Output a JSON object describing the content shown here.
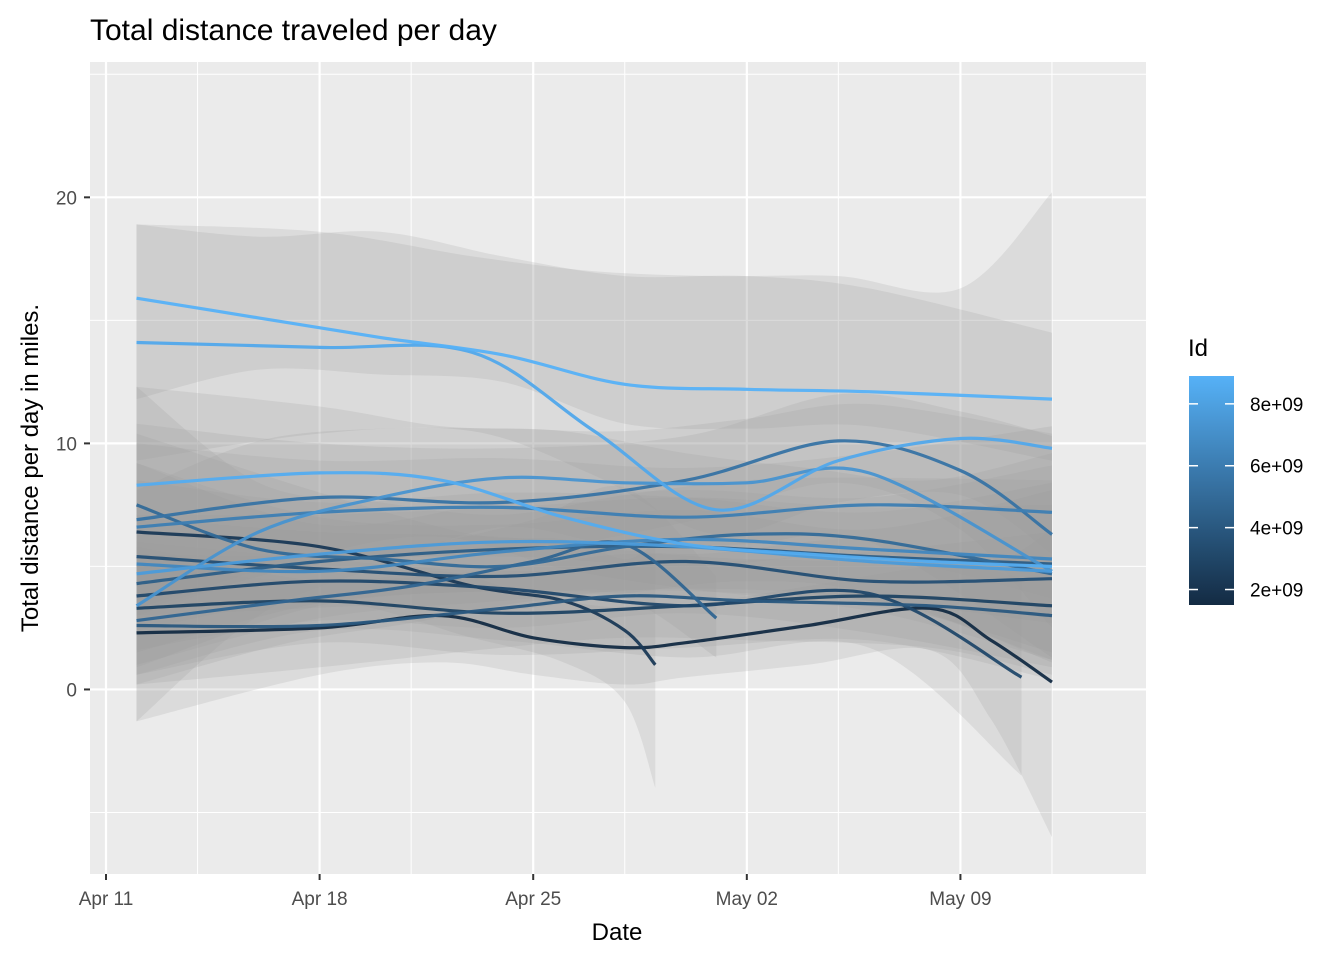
{
  "chart_data": {
    "type": "line",
    "title": "Total distance traveled per day",
    "xlabel": "Date",
    "ylabel": "Total distance per day in miles.",
    "x_ticks": [
      "Apr 11",
      "Apr 18",
      "Apr 25",
      "May 02",
      "May 09"
    ],
    "x_tick_dates": [
      "2016-04-11",
      "2016-04-18",
      "2016-04-25",
      "2016-05-02",
      "2016-05-09"
    ],
    "xlim": [
      "2016-04-11",
      "2016-05-14"
    ],
    "y_ticks": [
      0,
      10,
      20
    ],
    "ylim": [
      -7.5,
      25.5
    ],
    "grid": true,
    "legend": {
      "title": "Id",
      "position": "right",
      "type": "colorbar",
      "labels": [
        "8e+09",
        "6e+09",
        "4e+09",
        "2e+09"
      ],
      "label_values": [
        8000000000,
        6000000000,
        4000000000,
        2000000000
      ],
      "range": [
        1500000000,
        8900000000
      ],
      "color_low": "#132B43",
      "color_high": "#56B1F7"
    },
    "band_color": "#999999",
    "series": [
      {
        "id": 8900000000,
        "x": [
          "2016-04-12",
          "2016-04-16",
          "2016-04-20",
          "2016-04-24",
          "2016-04-28",
          "2016-05-02",
          "2016-05-06",
          "2016-05-12"
        ],
        "y": [
          15.9,
          15.1,
          14.3,
          13.6,
          12.4,
          12.2,
          12.1,
          11.8
        ],
        "band": [
          [
            11.8,
            18.9
          ],
          [
            13.0,
            18.4
          ],
          [
            12.8,
            18.6
          ],
          [
            12.5,
            17.6
          ],
          [
            10.8,
            16.8
          ],
          [
            10.6,
            16.8
          ],
          [
            10.7,
            16.3
          ],
          [
            9.3,
            14.5
          ]
        ]
      },
      {
        "id": 8400000000,
        "x": [
          "2016-04-12",
          "2016-04-18",
          "2016-04-23",
          "2016-04-27",
          "2016-05-01",
          "2016-05-05",
          "2016-05-09",
          "2016-05-12"
        ],
        "y": [
          14.1,
          13.9,
          13.7,
          10.5,
          7.3,
          9.3,
          10.2,
          9.8
        ],
        "band": [
          [
            9.3,
            18.9
          ],
          [
            10.4,
            18.6
          ],
          [
            10.5,
            17.6
          ],
          [
            8.7,
            17.0
          ],
          [
            6.3,
            16.8
          ],
          [
            7.6,
            16.8
          ],
          [
            7.9,
            16.3
          ],
          [
            5.5,
            20.2
          ]
        ]
      },
      {
        "id": 8600000000,
        "x": [
          "2016-04-12",
          "2016-04-18",
          "2016-04-22",
          "2016-04-26",
          "2016-04-30",
          "2016-05-04",
          "2016-05-08",
          "2016-05-12"
        ],
        "y": [
          8.3,
          8.8,
          8.5,
          7.0,
          5.9,
          5.5,
          5.2,
          5.0
        ],
        "band": [
          [
            3.3,
            12.3
          ],
          [
            5.5,
            11.5
          ],
          [
            6.2,
            10.7
          ],
          [
            4.9,
            10.5
          ],
          [
            4.1,
            9.6
          ],
          [
            3.6,
            9.0
          ],
          [
            3.0,
            8.5
          ],
          [
            1.1,
            9.6
          ]
        ]
      },
      {
        "id": 7300000000,
        "x": [
          "2016-04-12",
          "2016-04-16",
          "2016-04-20",
          "2016-04-24",
          "2016-04-28",
          "2016-05-02",
          "2016-05-06",
          "2016-05-12"
        ],
        "y": [
          3.4,
          6.4,
          7.8,
          8.6,
          8.4,
          8.4,
          8.8,
          4.8
        ],
        "band": [
          [
            -1.3,
            8.1
          ],
          [
            3.0,
            10.1
          ],
          [
            5.0,
            10.6
          ],
          [
            6.6,
            10.6
          ],
          [
            5.8,
            10.5
          ],
          [
            5.9,
            11.0
          ],
          [
            6.0,
            11.6
          ],
          [
            1.3,
            10.4
          ]
        ]
      },
      {
        "id": 5500000000,
        "x": [
          "2016-04-12",
          "2016-04-18",
          "2016-04-24",
          "2016-04-30",
          "2016-05-05",
          "2016-05-09",
          "2016-05-12"
        ],
        "y": [
          6.9,
          7.8,
          7.6,
          8.5,
          10.1,
          8.9,
          6.3
        ],
        "band": [
          [
            3.0,
            10.8
          ],
          [
            5.2,
            10.0
          ],
          [
            5.5,
            9.8
          ],
          [
            6.8,
            10.3
          ],
          [
            8.4,
            12.0
          ],
          [
            6.5,
            11.3
          ],
          [
            2.5,
            10.3
          ]
        ]
      },
      {
        "id": 5000000000,
        "x": [
          "2016-04-12",
          "2016-04-16",
          "2016-04-20",
          "2016-04-24",
          "2016-04-28",
          "2016-05-02",
          "2016-05-06",
          "2016-05-12"
        ],
        "y": [
          7.5,
          5.7,
          5.3,
          5.0,
          5.8,
          6.3,
          6.1,
          4.7
        ],
        "band": [
          [
            3.0,
            12.3
          ],
          [
            3.2,
            8.4
          ],
          [
            3.4,
            7.6
          ],
          [
            3.2,
            7.1
          ],
          [
            3.9,
            7.9
          ],
          [
            4.4,
            8.5
          ],
          [
            3.9,
            8.6
          ],
          [
            1.2,
            8.5
          ]
        ]
      },
      {
        "id": 4300000000,
        "x": [
          "2016-04-12",
          "2016-04-18",
          "2016-04-24",
          "2016-04-30",
          "2016-05-06",
          "2016-05-12"
        ],
        "y": [
          4.3,
          5.2,
          5.7,
          5.8,
          5.4,
          5.1
        ],
        "band": [
          [
            1.5,
            7.1
          ],
          [
            3.5,
            7.1
          ],
          [
            4.0,
            7.4
          ],
          [
            4.0,
            7.8
          ],
          [
            3.6,
            7.4
          ],
          [
            2.7,
            7.5
          ]
        ]
      },
      {
        "id": 4700000000,
        "x": [
          "2016-04-12",
          "2016-04-17",
          "2016-04-21",
          "2016-04-25",
          "2016-04-28",
          "2016-05-01"
        ],
        "y": [
          2.8,
          3.6,
          4.2,
          5.2,
          5.9,
          2.9
        ],
        "band": [
          [
            0.2,
            5.5
          ],
          [
            1.9,
            5.4
          ],
          [
            2.7,
            5.8
          ],
          [
            3.6,
            6.9
          ],
          [
            3.7,
            8.2
          ],
          [
            1.3,
            4.6
          ]
        ]
      },
      {
        "id": 4000000000,
        "x": [
          "2016-04-12",
          "2016-04-18",
          "2016-04-24",
          "2016-04-28",
          "2016-05-02",
          "2016-05-08",
          "2016-05-12"
        ],
        "y": [
          2.6,
          2.6,
          3.3,
          3.8,
          3.6,
          3.4,
          3.0
        ],
        "band": [
          [
            0.2,
            5.0
          ],
          [
            0.9,
            4.4
          ],
          [
            1.7,
            4.9
          ],
          [
            2.1,
            5.5
          ],
          [
            2.0,
            5.3
          ],
          [
            1.7,
            5.2
          ],
          [
            0.6,
            5.4
          ]
        ]
      },
      {
        "id": 1500000000,
        "x": [
          "2016-04-12",
          "2016-04-18",
          "2016-04-22",
          "2016-04-25",
          "2016-04-28",
          "2016-04-30",
          "2016-05-04",
          "2016-05-08",
          "2016-05-10",
          "2016-05-12"
        ],
        "y": [
          2.3,
          2.5,
          3.0,
          2.1,
          1.7,
          1.9,
          2.6,
          3.3,
          2.0,
          0.3
        ],
        "band": [
          [
            -1.3,
            5.8
          ],
          [
            0.6,
            4.4
          ],
          [
            1.1,
            4.8
          ],
          [
            0.6,
            3.8
          ],
          [
            0.2,
            3.3
          ],
          [
            0.5,
            3.4
          ],
          [
            1.0,
            4.2
          ],
          [
            1.6,
            5.0
          ],
          [
            -1.2,
            5.0
          ],
          [
            -6.0,
            6.5
          ]
        ]
      },
      {
        "id": 2300000000,
        "x": [
          "2016-04-12",
          "2016-04-18",
          "2016-04-23",
          "2016-04-26",
          "2016-04-28",
          "2016-04-29"
        ],
        "y": [
          6.4,
          5.8,
          4.2,
          3.6,
          2.4,
          1.0
        ],
        "band": [
          [
            2.4,
            10.4
          ],
          [
            3.6,
            8.0
          ],
          [
            2.1,
            6.3
          ],
          [
            1.1,
            6.1
          ],
          [
            -0.5,
            5.3
          ],
          [
            -4.0,
            6.0
          ]
        ]
      },
      {
        "id": 3500000000,
        "x": [
          "2016-04-12",
          "2016-04-18",
          "2016-04-24",
          "2016-04-30",
          "2016-05-06",
          "2016-05-12"
        ],
        "y": [
          5.4,
          4.9,
          4.6,
          5.2,
          4.4,
          4.5
        ],
        "band": [
          [
            1.6,
            9.2
          ],
          [
            2.8,
            7.0
          ],
          [
            2.5,
            6.7
          ],
          [
            3.1,
            7.3
          ],
          [
            2.3,
            6.5
          ],
          [
            0.9,
            8.1
          ]
        ]
      },
      {
        "id": 3100000000,
        "x": [
          "2016-04-12",
          "2016-04-18",
          "2016-04-24",
          "2016-04-30",
          "2016-05-06",
          "2016-05-11"
        ],
        "y": [
          3.8,
          4.4,
          4.1,
          3.4,
          3.9,
          0.5
        ],
        "band": [
          [
            0.6,
            7.0
          ],
          [
            2.4,
            6.4
          ],
          [
            2.0,
            6.2
          ],
          [
            1.3,
            5.5
          ],
          [
            1.7,
            6.1
          ],
          [
            -3.5,
            4.5
          ]
        ]
      },
      {
        "id": 6100000000,
        "x": [
          "2016-04-12",
          "2016-04-18",
          "2016-04-24",
          "2016-04-30",
          "2016-05-06",
          "2016-05-12"
        ],
        "y": [
          6.6,
          7.2,
          7.4,
          7.0,
          7.5,
          7.2
        ],
        "band": [
          [
            3.2,
            10.0
          ],
          [
            5.1,
            9.3
          ],
          [
            5.4,
            9.4
          ],
          [
            5.0,
            9.0
          ],
          [
            5.4,
            9.6
          ],
          [
            3.7,
            10.7
          ]
        ]
      },
      {
        "id": 6600000000,
        "x": [
          "2016-04-12",
          "2016-04-18",
          "2016-04-24",
          "2016-04-30",
          "2016-05-06",
          "2016-05-12"
        ],
        "y": [
          5.1,
          4.8,
          5.6,
          6.1,
          5.7,
          5.3
        ],
        "band": [
          [
            1.0,
            9.2
          ],
          [
            2.9,
            6.7
          ],
          [
            3.6,
            7.6
          ],
          [
            4.1,
            8.1
          ],
          [
            3.6,
            7.8
          ],
          [
            1.5,
            9.1
          ]
        ]
      },
      {
        "id": 2800000000,
        "x": [
          "2016-04-12",
          "2016-04-18",
          "2016-04-24",
          "2016-04-30",
          "2016-05-06",
          "2016-05-12"
        ],
        "y": [
          3.3,
          3.6,
          3.1,
          3.4,
          3.8,
          3.4
        ],
        "band": [
          [
            0.6,
            6.0
          ],
          [
            1.9,
            5.3
          ],
          [
            1.4,
            4.8
          ],
          [
            1.7,
            5.1
          ],
          [
            2.0,
            5.6
          ],
          [
            0.4,
            6.4
          ]
        ]
      },
      {
        "id": 7700000000,
        "x": [
          "2016-04-12",
          "2016-04-18",
          "2016-04-24",
          "2016-04-30",
          "2016-05-06",
          "2016-05-12"
        ],
        "y": [
          4.7,
          5.5,
          6.0,
          5.8,
          5.2,
          4.8
        ],
        "band": [
          [
            0.9,
            8.5
          ],
          [
            3.4,
            7.6
          ],
          [
            4.0,
            8.0
          ],
          [
            3.8,
            7.8
          ],
          [
            3.2,
            7.2
          ],
          [
            1.2,
            8.4
          ]
        ]
      }
    ]
  }
}
